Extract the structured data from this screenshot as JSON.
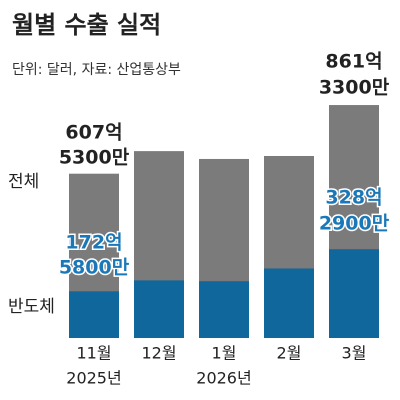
{
  "chart_data": {
    "type": "bar",
    "title": "월별 수출 실적",
    "subtitle": "단위: 달러, 자료: 산업통상부",
    "categories": [
      "11월",
      "12월",
      "1월",
      "2월",
      "3월"
    ],
    "category_sublabels": [
      "2025년",
      null,
      "2026년",
      null,
      null
    ],
    "series": [
      {
        "name": "반도체",
        "color": "#0f679c",
        "label_color": "#1a78b8",
        "values": [
          172.58,
          213,
          210,
          257,
          328.29
        ],
        "value_labels": [
          [
            "172억",
            "5800만"
          ],
          null,
          null,
          null,
          [
            "328억",
            "2900만"
          ]
        ]
      },
      {
        "name": "전체",
        "color": "#7b7b7b",
        "label_color": "#222222",
        "values": [
          607.53,
          691,
          662,
          673,
          861.33
        ],
        "value_labels": [
          [
            "607억",
            "5300만"
          ],
          null,
          null,
          null,
          [
            "861억",
            "3300만"
          ]
        ]
      }
    ],
    "ylim": [
      0,
      880
    ]
  }
}
